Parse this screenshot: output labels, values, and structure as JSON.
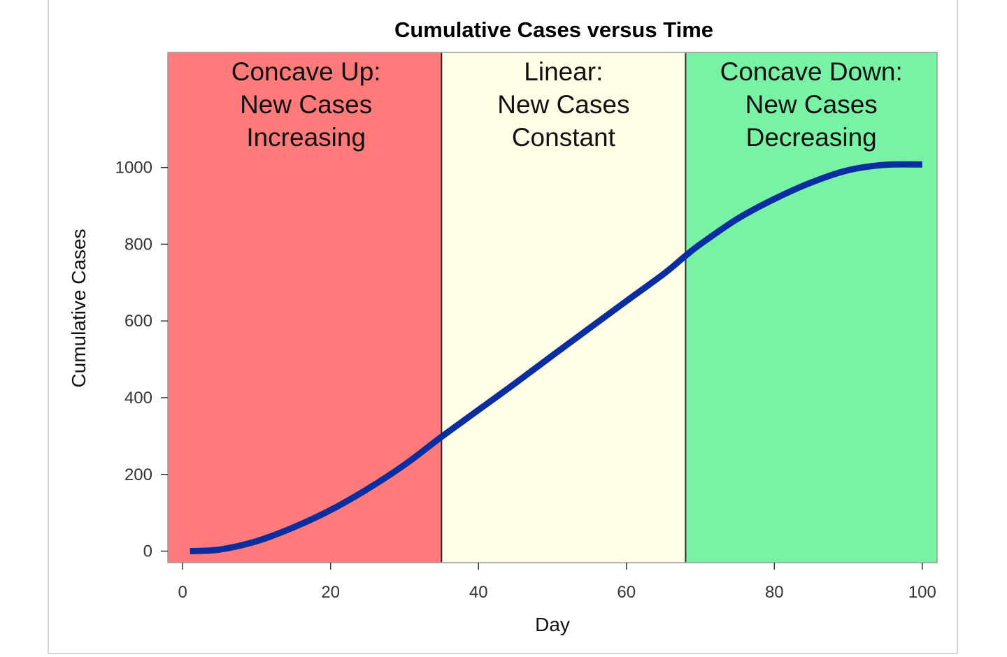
{
  "chart_data": {
    "type": "line",
    "title": "Cumulative Cases versus Time",
    "xlabel": "Day",
    "ylabel": "Cumulative Cases",
    "xlim": [
      -2,
      102
    ],
    "ylim": [
      -30,
      1300
    ],
    "xticks": [
      0,
      20,
      40,
      60,
      80,
      100
    ],
    "yticks": [
      0,
      200,
      400,
      600,
      800,
      1000
    ],
    "grid": false,
    "regions": [
      {
        "x0": -2,
        "x1": 35,
        "color": "#ff7a7a",
        "lines": [
          "Concave Up:",
          "New Cases",
          "Increasing"
        ]
      },
      {
        "x0": 35,
        "x1": 68,
        "color": "#fffde6",
        "lines": [
          "Linear:",
          "New Cases",
          "Constant"
        ]
      },
      {
        "x0": 68,
        "x1": 102,
        "color": "#7af2a6",
        "lines": [
          "Concave Down:",
          "New Cases",
          "Decreasing"
        ]
      }
    ],
    "series": [
      {
        "name": "Cumulative Cases",
        "color": "#0a2ea0",
        "x": [
          1,
          5,
          10,
          15,
          20,
          25,
          30,
          35,
          40,
          45,
          50,
          55,
          60,
          65,
          68,
          70,
          75,
          80,
          85,
          90,
          95,
          100
        ],
        "y": [
          0,
          4,
          26,
          62,
          107,
          162,
          225,
          298,
          368,
          438,
          510,
          581,
          652,
          722,
          770,
          800,
          866,
          918,
          961,
          993,
          1007,
          1008
        ]
      }
    ]
  }
}
